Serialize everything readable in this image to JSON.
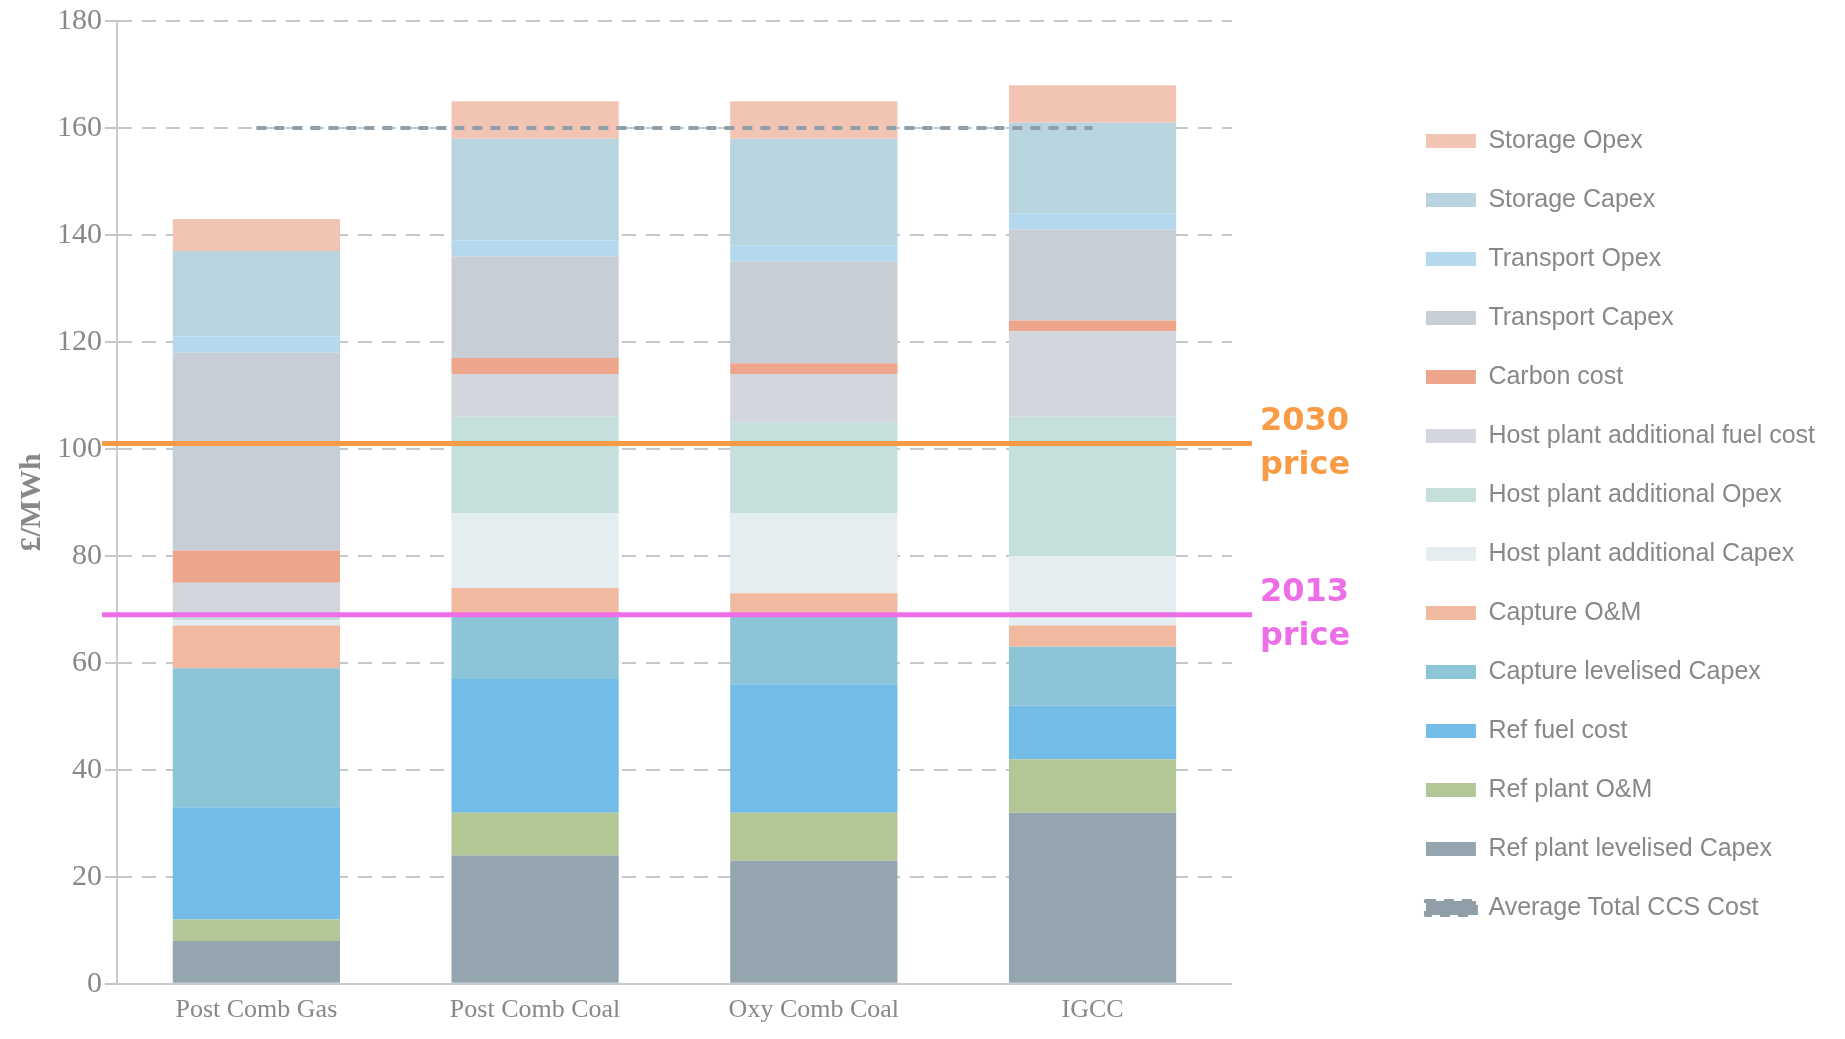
{
  "chart_data": {
    "type": "bar",
    "stacked": true,
    "ylabel": "£/MWh",
    "categories": [
      "Post Comb Gas",
      "Post Comb Coal",
      "Oxy Comb Coal",
      "IGCC"
    ],
    "ylim": [
      0,
      180
    ],
    "yticks": [
      0,
      20,
      40,
      60,
      80,
      100,
      120,
      140,
      160,
      180
    ],
    "grid": "y",
    "legend": "right",
    "series": [
      {
        "name": "Average Total CCS Cost",
        "type": "line",
        "line_style": "dashed",
        "marker": "none",
        "color": "#8f9ea8",
        "values": [
          160,
          160,
          160,
          160
        ]
      },
      {
        "name": "Ref plant levelised Capex",
        "color": "#95a5b0",
        "values": [
          8,
          24,
          23,
          32
        ]
      },
      {
        "name": "Ref plant O&M",
        "color": "#b3c796",
        "values": [
          4,
          8,
          9,
          10
        ]
      },
      {
        "name": "Ref fuel cost",
        "color": "#74bce8",
        "values": [
          21,
          25,
          24,
          10
        ]
      },
      {
        "name": "Capture levelised Capex",
        "color": "#8cc4d8",
        "values": [
          26,
          12,
          13,
          11
        ]
      },
      {
        "name": "Capture O&M",
        "color": "#f0b9a0",
        "values": [
          8,
          5,
          4,
          4
        ]
      },
      {
        "name": "Host plant additional Capex",
        "color": "#e4edf0",
        "values": [
          1,
          14,
          15,
          13
        ]
      },
      {
        "name": "Host plant additional Opex",
        "color": "#c5e0dc",
        "values": [
          1,
          18,
          17,
          26
        ]
      },
      {
        "name": "Host plant additional fuel cost",
        "color": "#d3d7dd",
        "values": [
          6,
          8,
          9,
          16
        ]
      },
      {
        "name": "Carbon cost",
        "color": "#eda58c",
        "values": [
          6,
          3,
          2,
          2
        ]
      },
      {
        "name": "Transport Capex",
        "color": "#c8ced6",
        "values": [
          37,
          19,
          19,
          17
        ]
      },
      {
        "name": "Transport Opex",
        "color": "#b4d8ee",
        "values": [
          3,
          3,
          3,
          3
        ]
      },
      {
        "name": "Storage Capex",
        "color": "#b8d4de",
        "values": [
          16,
          19,
          20,
          17
        ]
      },
      {
        "name": "Storage Opex",
        "color": "#f2c4b4",
        "values": [
          6,
          7,
          7,
          7
        ]
      }
    ],
    "ref_lines": [
      {
        "axis": "y",
        "value": 101,
        "label": "2030 price",
        "color": "#f99b45"
      },
      {
        "axis": "y",
        "value": 69,
        "label": "2013 price",
        "color": "#ee6ee8"
      }
    ]
  }
}
